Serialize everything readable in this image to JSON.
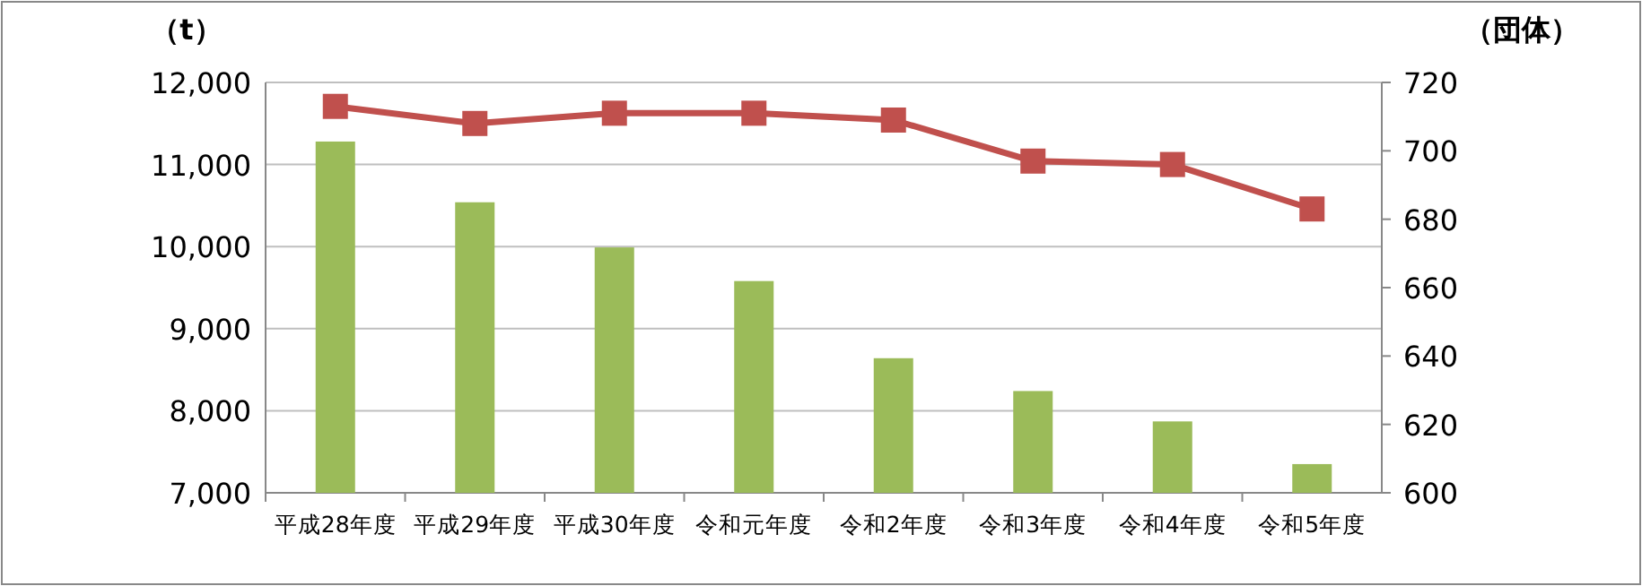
{
  "chart_data": {
    "type": "bar",
    "ylabel": "（t）",
    "y2label": "（団体）",
    "categories": [
      "平成28年度",
      "平成29年度",
      "平成30年度",
      "令和元年度",
      "令和2年度",
      "令和3年度",
      "令和4年度",
      "令和5年度"
    ],
    "series": [
      {
        "color": "#9bbb59",
        "values": [
          11280,
          10540,
          9990,
          9580,
          8640,
          8240,
          7870,
          7350
        ]
      },
      {
        "type": "line",
        "axis": "y2",
        "color": "#c0504d",
        "marker": "square",
        "values": [
          713,
          708,
          711,
          711,
          709,
          697,
          696,
          683
        ]
      }
    ],
    "ylim": [
      7000,
      12000
    ],
    "yticks": [
      {
        "value": 7000,
        "label": "7,000"
      },
      {
        "value": 8000,
        "label": "8,000"
      },
      {
        "value": 9000,
        "label": "9,000"
      },
      {
        "value": 10000,
        "label": "10,000"
      },
      {
        "value": 11000,
        "label": "11,000"
      },
      {
        "value": 12000,
        "label": "12,000"
      }
    ],
    "y2lim": [
      600,
      720
    ],
    "y2ticks": [
      600,
      620,
      640,
      660,
      680,
      700,
      720
    ],
    "grid": "y"
  }
}
